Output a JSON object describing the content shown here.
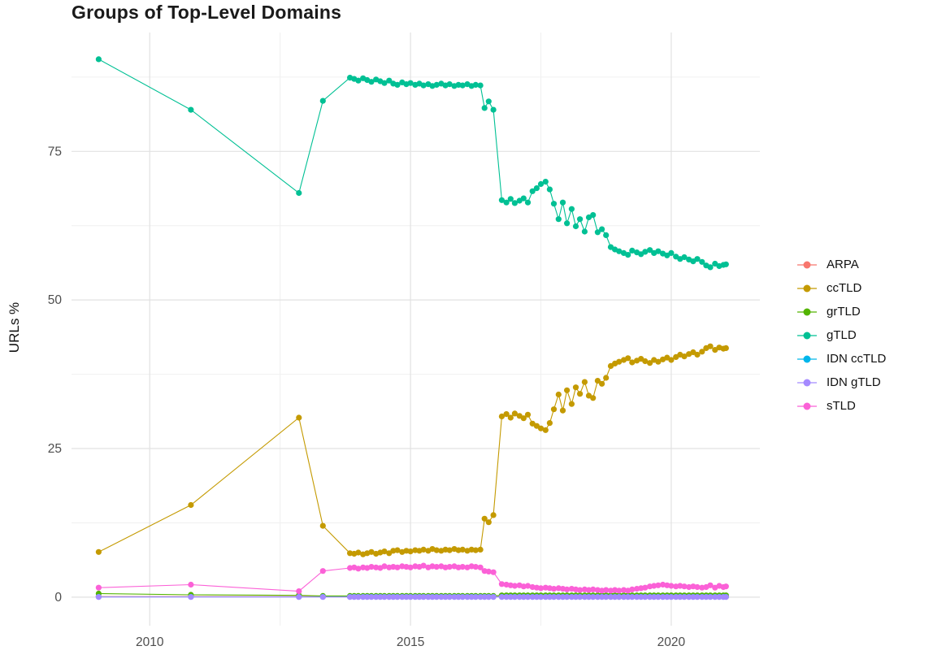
{
  "chart_data": {
    "type": "line",
    "title": "Groups of Top-Level Domains",
    "xlabel": "",
    "ylabel": "URLs %",
    "legend_position": "right",
    "grid": true,
    "background": "#ffffff",
    "major_grid_color": "#e2e2e2",
    "minor_grid_color": "#f0f0f0",
    "tick_label_color": "#4d4d4d",
    "x_ticks": [
      2010,
      2015,
      2020
    ],
    "x_minor_ticks": [
      2012.5,
      2017.5
    ],
    "y_ticks": [
      0,
      25,
      50,
      75
    ],
    "y_minor_ticks": [
      12.5,
      37.5,
      62.5,
      87.5
    ],
    "x_domain": [
      2008.5,
      2021.7
    ],
    "y_domain": [
      -4.8,
      95
    ],
    "x": [
      2009.02,
      2010.79,
      2012.86,
      2013.32,
      2013.84,
      2013.92,
      2014,
      2014.09,
      2014.17,
      2014.25,
      2014.34,
      2014.42,
      2014.5,
      2014.59,
      2014.67,
      2014.75,
      2014.84,
      2014.92,
      2015,
      2015.09,
      2015.17,
      2015.25,
      2015.34,
      2015.42,
      2015.5,
      2015.59,
      2015.67,
      2015.75,
      2015.84,
      2015.92,
      2016,
      2016.09,
      2016.17,
      2016.25,
      2016.34,
      2016.42,
      2016.5,
      2016.59,
      2016.75,
      2016.84,
      2016.92,
      2017,
      2017.09,
      2017.17,
      2017.25,
      2017.34,
      2017.42,
      2017.5,
      2017.59,
      2017.67,
      2017.75,
      2017.84,
      2017.92,
      2018,
      2018.09,
      2018.17,
      2018.25,
      2018.34,
      2018.42,
      2018.5,
      2018.59,
      2018.67,
      2018.75,
      2018.84,
      2018.92,
      2019,
      2019.09,
      2019.17,
      2019.25,
      2019.34,
      2019.42,
      2019.5,
      2019.59,
      2019.67,
      2019.75,
      2019.84,
      2019.92,
      2020,
      2020.09,
      2020.17,
      2020.25,
      2020.34,
      2020.42,
      2020.5,
      2020.59,
      2020.67,
      2020.75,
      2020.84,
      2020.92,
      2021,
      2021.05
    ],
    "series": [
      {
        "name": "ARPA",
        "color": "#F8766D",
        "constant": 0.1
      },
      {
        "name": "ccTLD",
        "color": "#C49A00",
        "values": [
          7.6,
          15.5,
          30.2,
          12,
          7.4,
          7.3,
          7.5,
          7.2,
          7.4,
          7.6,
          7.3,
          7.5,
          7.7,
          7.4,
          7.8,
          7.9,
          7.6,
          7.8,
          7.7,
          7.9,
          7.8,
          8,
          7.8,
          8.1,
          7.9,
          7.8,
          8,
          7.9,
          8.1,
          7.9,
          8,
          7.8,
          8,
          7.9,
          8,
          13.2,
          12.6,
          13.8,
          30.4,
          30.8,
          30.2,
          30.9,
          30.5,
          30.1,
          30.7,
          29.2,
          28.8,
          28.4,
          28.1,
          29.3,
          31.6,
          34.1,
          31.4,
          34.8,
          32.5,
          35.3,
          34.2,
          36.2,
          33.9,
          33.5,
          36.4,
          35.9,
          36.9,
          38.9,
          39.3,
          39.6,
          39.9,
          40.2,
          39.5,
          39.8,
          40.1,
          39.7,
          39.4,
          39.9,
          39.6,
          40,
          40.3,
          39.9,
          40.4,
          40.8,
          40.5,
          40.9,
          41.2,
          40.8,
          41.3,
          41.9,
          42.2,
          41.6,
          42,
          41.8,
          41.9
        ]
      },
      {
        "name": "grTLD",
        "color": "#53B400",
        "values": [
          0.6,
          0.4,
          0.3,
          0.2,
          0.2,
          0.2,
          0.2,
          0.2,
          0.2,
          0.2,
          0.2,
          0.2,
          0.2,
          0.2,
          0.2,
          0.2,
          0.2,
          0.2,
          0.2,
          0.2,
          0.2,
          0.2,
          0.2,
          0.2,
          0.2,
          0.2,
          0.2,
          0.2,
          0.2,
          0.2,
          0.2,
          0.2,
          0.2,
          0.2,
          0.2,
          0.2,
          0.2,
          0.2,
          0.3,
          0.3,
          0.3,
          0.3,
          0.3,
          0.3,
          0.3,
          0.3,
          0.3,
          0.3,
          0.3,
          0.3,
          0.3,
          0.3,
          0.3,
          0.3,
          0.3,
          0.3,
          0.3,
          0.3,
          0.3,
          0.3,
          0.3,
          0.3,
          0.3,
          0.3,
          0.3,
          0.3,
          0.3,
          0.3,
          0.3,
          0.3,
          0.3,
          0.3,
          0.3,
          0.3,
          0.3,
          0.3,
          0.3,
          0.3,
          0.3,
          0.3,
          0.3,
          0.3,
          0.3,
          0.3,
          0.3,
          0.3,
          0.3,
          0.3,
          0.3,
          0.3,
          0.3
        ]
      },
      {
        "name": "gTLD",
        "color": "#00C094",
        "values": [
          90.5,
          82,
          68,
          83.5,
          87.4,
          87.2,
          86.9,
          87.3,
          87,
          86.7,
          87.1,
          86.8,
          86.5,
          86.9,
          86.4,
          86.2,
          86.6,
          86.3,
          86.5,
          86.2,
          86.4,
          86.1,
          86.3,
          86,
          86.2,
          86.4,
          86.1,
          86.3,
          86,
          86.2,
          86.1,
          86.3,
          86,
          86.2,
          86.1,
          82.3,
          83.4,
          82,
          66.8,
          66.4,
          67,
          66.3,
          66.7,
          67.1,
          66.4,
          68.3,
          68.8,
          69.5,
          69.9,
          68.6,
          66.2,
          63.6,
          66.4,
          62.9,
          65.3,
          62.4,
          63.6,
          61.5,
          63.9,
          64.3,
          61.4,
          61.9,
          60.9,
          58.9,
          58.5,
          58.2,
          57.9,
          57.6,
          58.3,
          58,
          57.7,
          58.1,
          58.4,
          57.9,
          58.2,
          57.8,
          57.5,
          57.9,
          57.3,
          56.9,
          57.2,
          56.8,
          56.5,
          56.9,
          56.4,
          55.8,
          55.5,
          56.1,
          55.7,
          55.9,
          56
        ]
      },
      {
        "name": "IDN ccTLD",
        "color": "#00B6EB",
        "constant": 0.05
      },
      {
        "name": "IDN gTLD",
        "color": "#A58AFF",
        "constant": 0.02
      },
      {
        "name": "sTLD",
        "color": "#FB61D7",
        "values": [
          1.6,
          2.1,
          1,
          4.4,
          4.9,
          5,
          4.8,
          5,
          4.9,
          5.1,
          5,
          4.9,
          5.2,
          5,
          5.1,
          5,
          5.2,
          5.1,
          5,
          5.2,
          5.1,
          5.3,
          5,
          5.2,
          5.1,
          5.2,
          5,
          5.1,
          5.2,
          5,
          5.1,
          5,
          5.2,
          5.1,
          5,
          4.4,
          4.3,
          4.2,
          2.2,
          2.1,
          2,
          1.9,
          2,
          1.8,
          1.9,
          1.7,
          1.6,
          1.5,
          1.6,
          1.5,
          1.4,
          1.5,
          1.4,
          1.3,
          1.4,
          1.3,
          1.2,
          1.3,
          1.2,
          1.3,
          1.2,
          1.1,
          1.2,
          1.1,
          1.2,
          1.1,
          1.2,
          1.1,
          1.3,
          1.4,
          1.5,
          1.6,
          1.8,
          1.9,
          2,
          2.1,
          2,
          1.9,
          1.8,
          1.9,
          1.8,
          1.7,
          1.8,
          1.7,
          1.6,
          1.7,
          2,
          1.6,
          1.9,
          1.7,
          1.8
        ]
      }
    ]
  }
}
